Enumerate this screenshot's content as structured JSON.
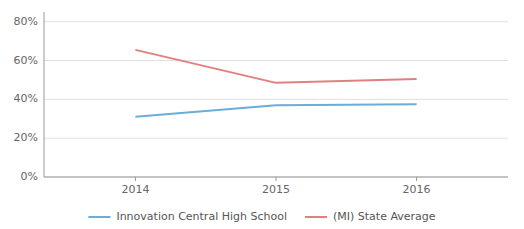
{
  "chart_data": {
    "type": "line",
    "x": [
      2014,
      2015,
      2016
    ],
    "series": [
      {
        "name": "Innovation Central High School",
        "color": "#6aaed6",
        "values": [
          0.31,
          0.37,
          0.375
        ]
      },
      {
        "name": "(MI) State Average",
        "color": "#e08080",
        "values": [
          0.655,
          0.485,
          0.505
        ]
      }
    ],
    "xlim": [
      2013.35,
      2016.65
    ],
    "xticks": [
      2014,
      2015,
      2016
    ],
    "ylim": [
      0.0,
      0.85
    ],
    "yticks": [
      {
        "value": 0.0,
        "label": "0%"
      },
      {
        "value": 0.2,
        "label": "20%"
      },
      {
        "value": 0.4,
        "label": "40%"
      },
      {
        "value": 0.6,
        "label": "60%"
      },
      {
        "value": 0.8,
        "label": "80%"
      }
    ],
    "grid": true,
    "legend": "bottom"
  }
}
